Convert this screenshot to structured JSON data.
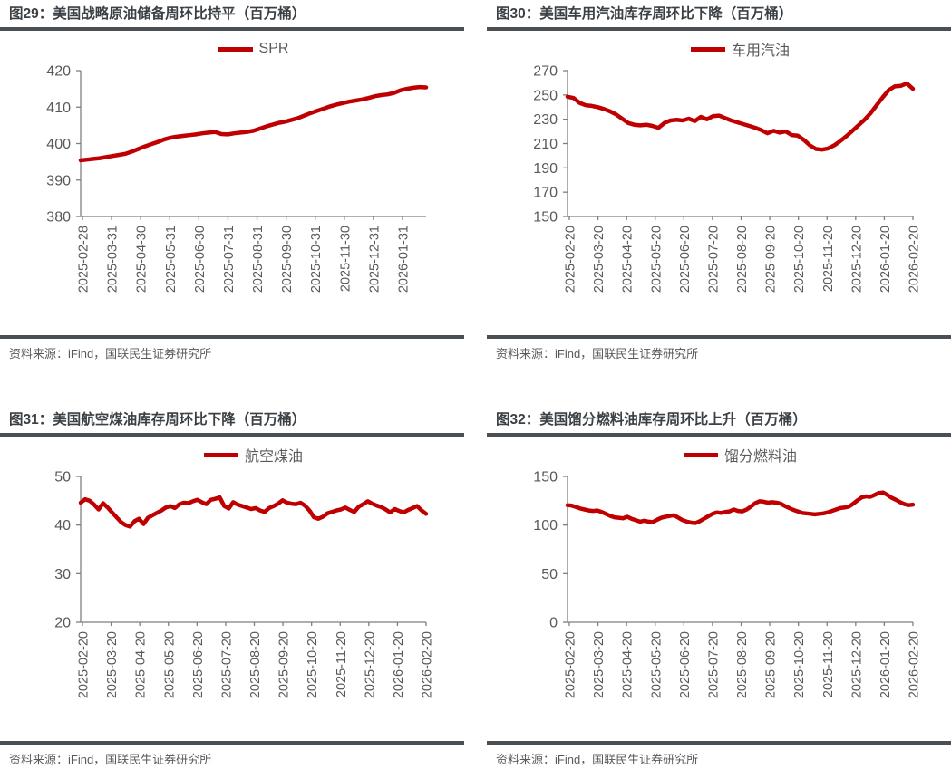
{
  "source_note": "资料来源：iFind，国联民生证券研究所",
  "theme": {
    "series_red": "#C00000",
    "axis_color": "#7F7F7F",
    "tick_text_color": "#595959",
    "title_color": "#3B4044",
    "rule_color": "#4A4F53"
  },
  "chart_data": [
    {
      "type": "line",
      "title": "图29：美国战略原油储备周环比持平（百万桶）",
      "legend": "SPR",
      "ylim": [
        380,
        420
      ],
      "yticks": [
        380,
        390,
        400,
        410,
        420
      ],
      "grid": false,
      "legend_position": "top-center",
      "categories": [
        "2025-02-28",
        "2025-03-31",
        "2025-04-30",
        "2025-05-31",
        "2025-06-30",
        "2025-07-31",
        "2025-08-31",
        "2025-09-30",
        "2025-10-31",
        "2025-11-30",
        "2025-12-31",
        "2026-01-31"
      ],
      "values": [
        395.4,
        395.6,
        395.8,
        396.0,
        396.3,
        396.6,
        396.9,
        397.2,
        397.8,
        398.5,
        399.2,
        399.8,
        400.4,
        401.1,
        401.6,
        401.9,
        402.1,
        402.3,
        402.5,
        402.8,
        403.0,
        403.2,
        402.6,
        402.5,
        402.8,
        403.0,
        403.2,
        403.5,
        404.1,
        404.7,
        405.2,
        405.7,
        406.0,
        406.5,
        407.0,
        407.7,
        408.4,
        409.0,
        409.6,
        410.2,
        410.7,
        411.1,
        411.5,
        411.8,
        412.1,
        412.5,
        413.0,
        413.3,
        413.5,
        413.9,
        414.6,
        415.0,
        415.3,
        415.5,
        415.4
      ]
    },
    {
      "type": "line",
      "title": "图30：美国车用汽油库存周环比下降（百万桶）",
      "legend": "车用汽油",
      "ylim": [
        150,
        270
      ],
      "yticks": [
        150,
        170,
        190,
        210,
        230,
        250,
        270
      ],
      "grid": false,
      "legend_position": "top-center",
      "categories": [
        "2025-02-20",
        "2025-03-20",
        "2025-04-20",
        "2025-05-20",
        "2025-06-20",
        "2025-07-20",
        "2025-08-20",
        "2025-09-20",
        "2025-10-20",
        "2025-11-20",
        "2025-12-20",
        "2026-01-20",
        "2026-02-20"
      ],
      "values": [
        248.5,
        247.5,
        243.5,
        241.5,
        241.0,
        240.0,
        238.5,
        236.5,
        234.0,
        230.5,
        227.0,
        225.5,
        225.0,
        225.5,
        224.5,
        223.0,
        227.0,
        229.0,
        229.5,
        229.0,
        230.5,
        228.5,
        232.0,
        230.0,
        232.5,
        233.0,
        231.0,
        229.0,
        227.5,
        226.0,
        224.5,
        223.0,
        221.0,
        218.5,
        220.5,
        219.0,
        220.0,
        217.0,
        216.5,
        213.0,
        208.5,
        205.5,
        205.0,
        206.0,
        208.5,
        212.0,
        216.0,
        220.5,
        225.0,
        229.5,
        235.0,
        241.5,
        248.0,
        254.0,
        257.0,
        257.5,
        259.5,
        255.0
      ]
    },
    {
      "type": "line",
      "title": "图31：美国航空煤油库存周环比下降（百万桶）",
      "legend": "航空煤油",
      "ylim": [
        20,
        50
      ],
      "yticks": [
        20,
        30,
        40,
        50
      ],
      "grid": false,
      "legend_position": "top-center",
      "categories": [
        "2025-02-20",
        "2025-03-20",
        "2025-04-20",
        "2025-05-20",
        "2025-06-20",
        "2025-07-20",
        "2025-08-20",
        "2025-09-20",
        "2025-10-20",
        "2025-11-20",
        "2025-12-20",
        "2026-01-20",
        "2026-02-20"
      ],
      "values": [
        44.6,
        45.3,
        45.0,
        44.2,
        43.2,
        44.5,
        43.6,
        42.6,
        41.6,
        40.6,
        40.0,
        39.7,
        40.8,
        41.3,
        40.2,
        41.5,
        42.0,
        42.5,
        43.0,
        43.6,
        43.9,
        43.5,
        44.3,
        44.6,
        44.5,
        44.9,
        45.2,
        44.7,
        44.3,
        45.2,
        45.4,
        45.7,
        43.9,
        43.4,
        44.7,
        44.2,
        43.9,
        43.6,
        43.3,
        43.5,
        43.0,
        42.7,
        43.5,
        43.9,
        44.4,
        45.1,
        44.6,
        44.4,
        44.3,
        44.6,
        44.0,
        43.0,
        41.6,
        41.3,
        41.7,
        42.4,
        42.7,
        43.0,
        43.2,
        43.6,
        43.1,
        42.7,
        43.8,
        44.3,
        44.9,
        44.4,
        44.0,
        43.7,
        43.2,
        42.6,
        43.3,
        42.9,
        42.6,
        43.1,
        43.5,
        43.9,
        43.0,
        42.3
      ]
    },
    {
      "type": "line",
      "title": "图32：美国馏分燃料油库存周环比上升（百万桶）",
      "legend": "馏分燃料油",
      "ylim": [
        0,
        150
      ],
      "yticks": [
        0,
        50,
        100,
        150
      ],
      "grid": false,
      "legend_position": "top-center",
      "categories": [
        "2025-02-20",
        "2025-03-20",
        "2025-04-20",
        "2025-05-20",
        "2025-06-20",
        "2025-07-20",
        "2025-08-20",
        "2025-09-20",
        "2025-10-20",
        "2025-11-20",
        "2025-12-20",
        "2026-01-20",
        "2026-02-20"
      ],
      "values": [
        120.5,
        120.0,
        118.5,
        117.0,
        116.0,
        115.0,
        114.5,
        115.0,
        113.5,
        111.5,
        109.5,
        108.0,
        107.5,
        107.0,
        108.5,
        106.5,
        105.0,
        103.5,
        104.5,
        103.5,
        103.0,
        105.5,
        107.5,
        108.5,
        109.5,
        110.0,
        107.5,
        105.0,
        103.5,
        102.5,
        102.0,
        104.0,
        106.5,
        109.0,
        111.5,
        113.0,
        112.5,
        113.5,
        114.0,
        116.0,
        114.5,
        114.0,
        116.0,
        119.0,
        122.5,
        124.5,
        124.0,
        123.0,
        123.5,
        123.0,
        122.0,
        119.5,
        117.5,
        115.5,
        114.0,
        112.5,
        112.0,
        111.5,
        111.0,
        111.5,
        112.0,
        113.0,
        114.5,
        116.0,
        117.5,
        118.0,
        119.0,
        122.0,
        125.5,
        128.5,
        129.5,
        129.0,
        131.0,
        133.0,
        133.5,
        131.0,
        128.0,
        126.0,
        123.5,
        121.5,
        120.5,
        121.0
      ]
    }
  ]
}
